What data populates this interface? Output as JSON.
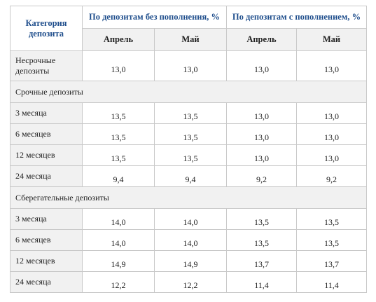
{
  "table": {
    "category_header": "Категория депозита",
    "groups": [
      "По депозитам без пополнения, %",
      "По депозитам  с пополнением, %"
    ],
    "months": [
      "Апрель",
      "Май",
      "Апрель",
      "Май"
    ],
    "rows": [
      {
        "type": "row",
        "label": "Несрочные депозиты",
        "values": [
          "13,0",
          "13,0",
          "13,0",
          "13,0"
        ]
      },
      {
        "type": "section",
        "label": "Срочные депозиты"
      },
      {
        "type": "row",
        "label": "3 месяца",
        "values": [
          "13,5",
          "13,5",
          "13,0",
          "13,0"
        ]
      },
      {
        "type": "row",
        "label": "6 месяцев",
        "values": [
          "13,5",
          "13,5",
          "13,0",
          "13,0"
        ]
      },
      {
        "type": "row",
        "label": "12 месяцев",
        "values": [
          "13,5",
          "13,5",
          "13,0",
          "13,0"
        ]
      },
      {
        "type": "row",
        "label": "24 месяца",
        "values": [
          "9,4",
          "9,4",
          "9,2",
          "9,2"
        ]
      },
      {
        "type": "section",
        "label": "Сберегательные  депозиты"
      },
      {
        "type": "row",
        "label": "3 месяца",
        "values": [
          "14,0",
          "14,0",
          "13,5",
          "13,5"
        ]
      },
      {
        "type": "row",
        "label": "6 месяцев",
        "values": [
          "14,0",
          "14,0",
          "13,5",
          "13,5"
        ]
      },
      {
        "type": "row",
        "label": "12 месяцев",
        "values": [
          "14,9",
          "14,9",
          "13,7",
          "13,7"
        ]
      },
      {
        "type": "row",
        "label": "24 месяца",
        "values": [
          "12,2",
          "12,2",
          "11,4",
          "11,4"
        ]
      }
    ]
  }
}
